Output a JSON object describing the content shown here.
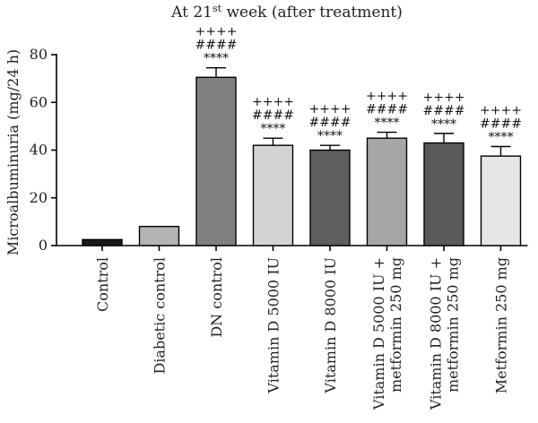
{
  "chart_data": {
    "type": "bar",
    "title_main": "At 21",
    "title_sup": "st",
    "title_rest": " week (after treatment)",
    "ylabel": "Microalbuminuria (mg/24 h)",
    "xlabel": "",
    "ylim": [
      0,
      80
    ],
    "yticks": [
      "0",
      "20",
      "40",
      "60",
      "80"
    ],
    "grid": false,
    "categories": [
      [
        "Control"
      ],
      [
        "Diabetic control"
      ],
      [
        "DN control"
      ],
      [
        "Vitamin D 5000 IU"
      ],
      [
        "Vitamin D 8000 IU"
      ],
      [
        "Vitamin D 5000 IU +",
        "metformin 250 mg"
      ],
      [
        "Vitamin D 8000 IU +",
        "metformin 250 mg"
      ],
      [
        "Metformin 250 mg"
      ]
    ],
    "values": [
      2.5,
      8,
      70.5,
      42,
      40,
      45,
      43,
      37.5
    ],
    "errors": [
      0.4,
      0.3,
      4,
      3,
      2,
      2.5,
      4,
      4
    ],
    "colors": [
      "#1a1a1a",
      "#b3b3b3",
      "#808080",
      "#d3d3d3",
      "#5e5e5e",
      "#a6a6a6",
      "#5a5a5a",
      "#e6e6e6"
    ],
    "significance": [
      [],
      [],
      [
        "++++",
        "####",
        "****"
      ],
      [
        "++++",
        "####",
        "****"
      ],
      [
        "++++",
        "####",
        "****"
      ],
      [
        "++++",
        "####",
        "****"
      ],
      [
        "++++",
        "####",
        "****"
      ],
      [
        "++++",
        "####",
        "****"
      ]
    ]
  }
}
